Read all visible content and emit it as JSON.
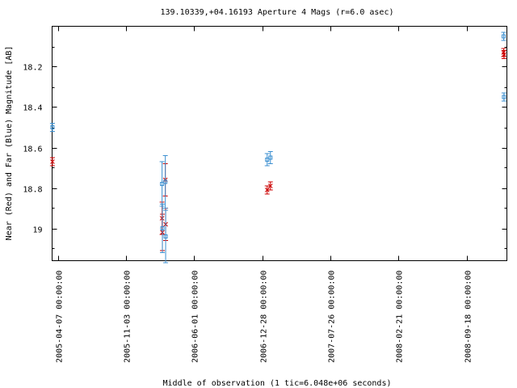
{
  "chart_data": {
    "type": "scatter",
    "title": "139.10339,+04.16193   Aperture 4 Mags (r=6.0 asec)",
    "xlabel": "Middle of observation (1 tic=6.048e+06 seconds)",
    "ylabel": "Near (Red) and Far (Blue) Magnitude [AB]",
    "y_inverted": true,
    "ylim": [
      18.0,
      19.16
    ],
    "y_ticks": [
      18.2,
      18.4,
      18.6,
      18.8,
      19.0
    ],
    "y_tick_labels": [
      "18.2",
      "18.4",
      "18.6",
      "18.8",
      "19"
    ],
    "xlim": [
      "2005-03-20",
      "2009-01-20"
    ],
    "x_ticks": [
      "2005-04-07",
      "2005-11-03",
      "2006-06-01",
      "2006-12-28",
      "2007-07-26",
      "2008-02-21",
      "2008-09-18"
    ],
    "x_tick_labels": [
      "2005-04-07 00:00:00",
      "2005-11-03 00:00:00",
      "2006-06-01 00:00:00",
      "2006-12-28 00:00:00",
      "2007-07-26 00:00:00",
      "2008-02-21 00:00:00",
      "2008-09-18 00:00:00"
    ],
    "series": [
      {
        "color": "#cc0000",
        "marker": "x",
        "points": [
          {
            "x": "2005-03-21",
            "y": 18.67,
            "err": 0.02
          },
          {
            "x": "2006-02-22",
            "y": 18.95,
            "err": 0.08
          },
          {
            "x": "2006-02-23",
            "y": 19.02,
            "err": 0.09
          },
          {
            "x": "2006-03-04",
            "y": 18.76,
            "err": 0.08
          },
          {
            "x": "2006-03-05",
            "y": 18.98,
            "err": 0.08
          },
          {
            "x": "2007-01-12",
            "y": 18.81,
            "err": 0.02
          },
          {
            "x": "2007-01-22",
            "y": 18.79,
            "err": 0.02
          },
          {
            "x": "2009-01-10",
            "y": 18.13,
            "err": 0.02
          },
          {
            "x": "2009-01-11",
            "y": 18.14,
            "err": 0.02
          }
        ]
      },
      {
        "color": "#3b8fd0",
        "marker": "square",
        "points": [
          {
            "x": "2005-03-21",
            "y": 18.5,
            "err": 0.02
          },
          {
            "x": "2006-02-22",
            "y": 18.78,
            "err": 0.11
          },
          {
            "x": "2006-02-23",
            "y": 19.0,
            "err": 0.12
          },
          {
            "x": "2006-03-04",
            "y": 18.77,
            "err": 0.13
          },
          {
            "x": "2006-03-05",
            "y": 19.04,
            "err": 0.13
          },
          {
            "x": "2007-01-12",
            "y": 18.66,
            "err": 0.03
          },
          {
            "x": "2007-01-22",
            "y": 18.65,
            "err": 0.03
          },
          {
            "x": "2009-01-10",
            "y": 18.05,
            "err": 0.02
          },
          {
            "x": "2009-01-11",
            "y": 18.35,
            "err": 0.02
          }
        ]
      }
    ]
  }
}
